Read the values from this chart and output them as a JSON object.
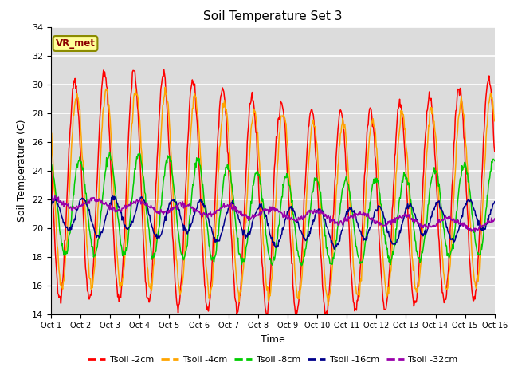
{
  "title": "Soil Temperature Set 3",
  "xlabel": "Time",
  "ylabel": "Soil Temperature (C)",
  "xlim": [
    0,
    15
  ],
  "ylim": [
    14,
    34
  ],
  "yticks": [
    14,
    16,
    18,
    20,
    22,
    24,
    26,
    28,
    30,
    32,
    34
  ],
  "xtick_labels": [
    "Oct 1",
    "Oct 2",
    "Oct 3",
    "Oct 4",
    "Oct 5",
    "Oct 6",
    "Oct 7",
    "Oct 8",
    "Oct 9",
    "Oct 10",
    "Oct 11",
    "Oct 12",
    "Oct 13",
    "Oct 14",
    "Oct 15",
    "Oct 16"
  ],
  "bg_color": "#dcdcdc",
  "grid_color": "#ffffff",
  "annotation_text": "VR_met",
  "annotation_bg": "#ffff99",
  "annotation_fg": "#8b0000",
  "annotation_border": "#8b8b00",
  "series_colors": [
    "#ff0000",
    "#ffa500",
    "#00cc00",
    "#00008b",
    "#9900aa"
  ],
  "series_labels": [
    "Tsoil -2cm",
    "Tsoil -4cm",
    "Tsoil -8cm",
    "Tsoil -16cm",
    "Tsoil -32cm"
  ],
  "series_lw": [
    1.1,
    1.1,
    1.1,
    1.1,
    1.1
  ],
  "n_days": 15,
  "pts_per_day": 48,
  "title_fontsize": 11,
  "axis_label_fontsize": 9,
  "tick_fontsize": 8
}
